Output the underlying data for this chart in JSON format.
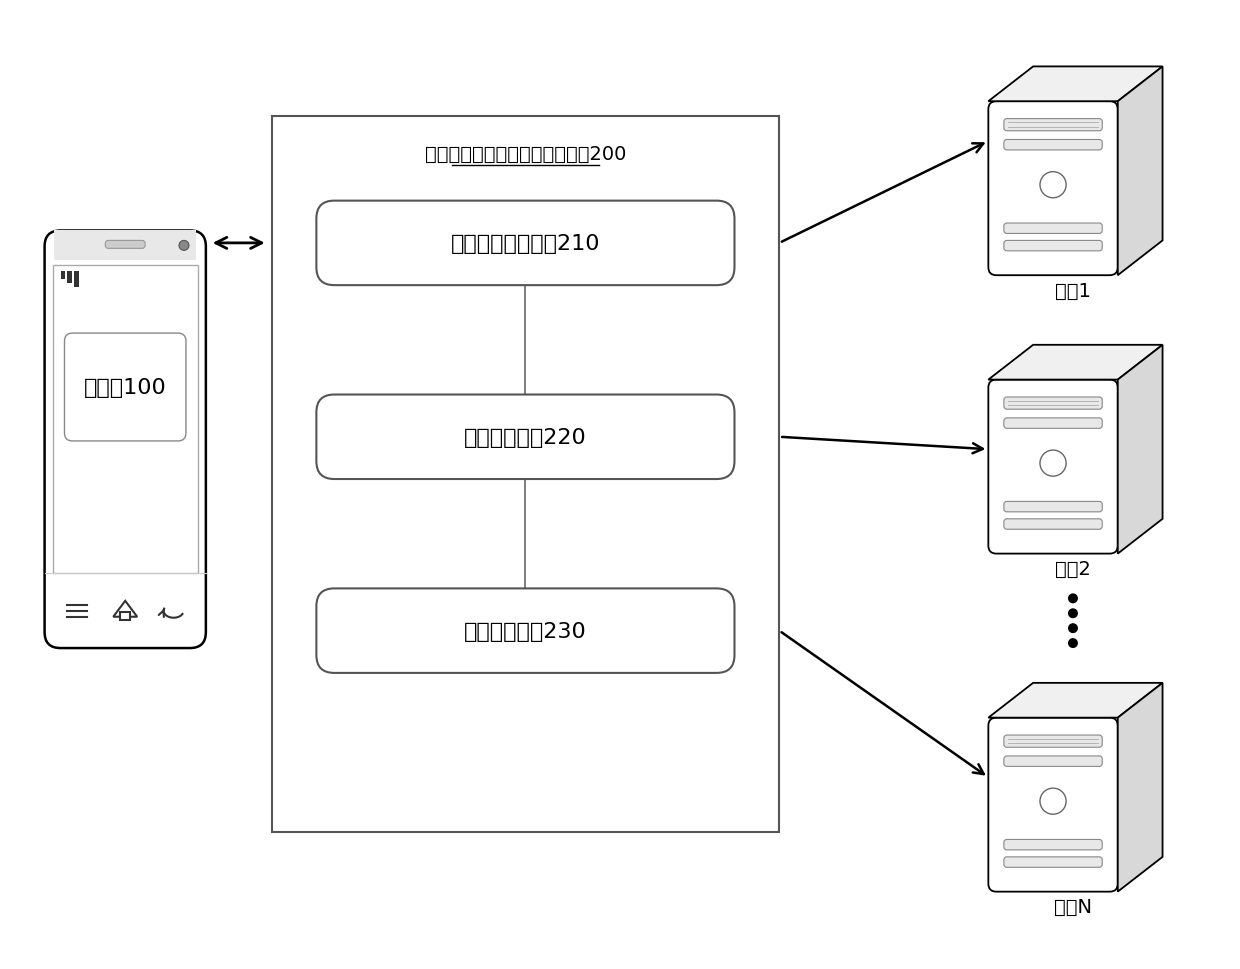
{
  "bg_color": "#ffffff",
  "title": "分布式存储系统的性能测试设备200",
  "client_label": "客户端100",
  "module1_label": "配置文件加载模块210",
  "module2_label": "自动测试模块220",
  "module3_label": "日志分析模块230",
  "node1_label": "节点1",
  "node2_label": "节点2",
  "node3_label": "节点N",
  "font_size_title": 14,
  "font_size_label": 16,
  "font_size_node": 14,
  "font_size_client": 16
}
